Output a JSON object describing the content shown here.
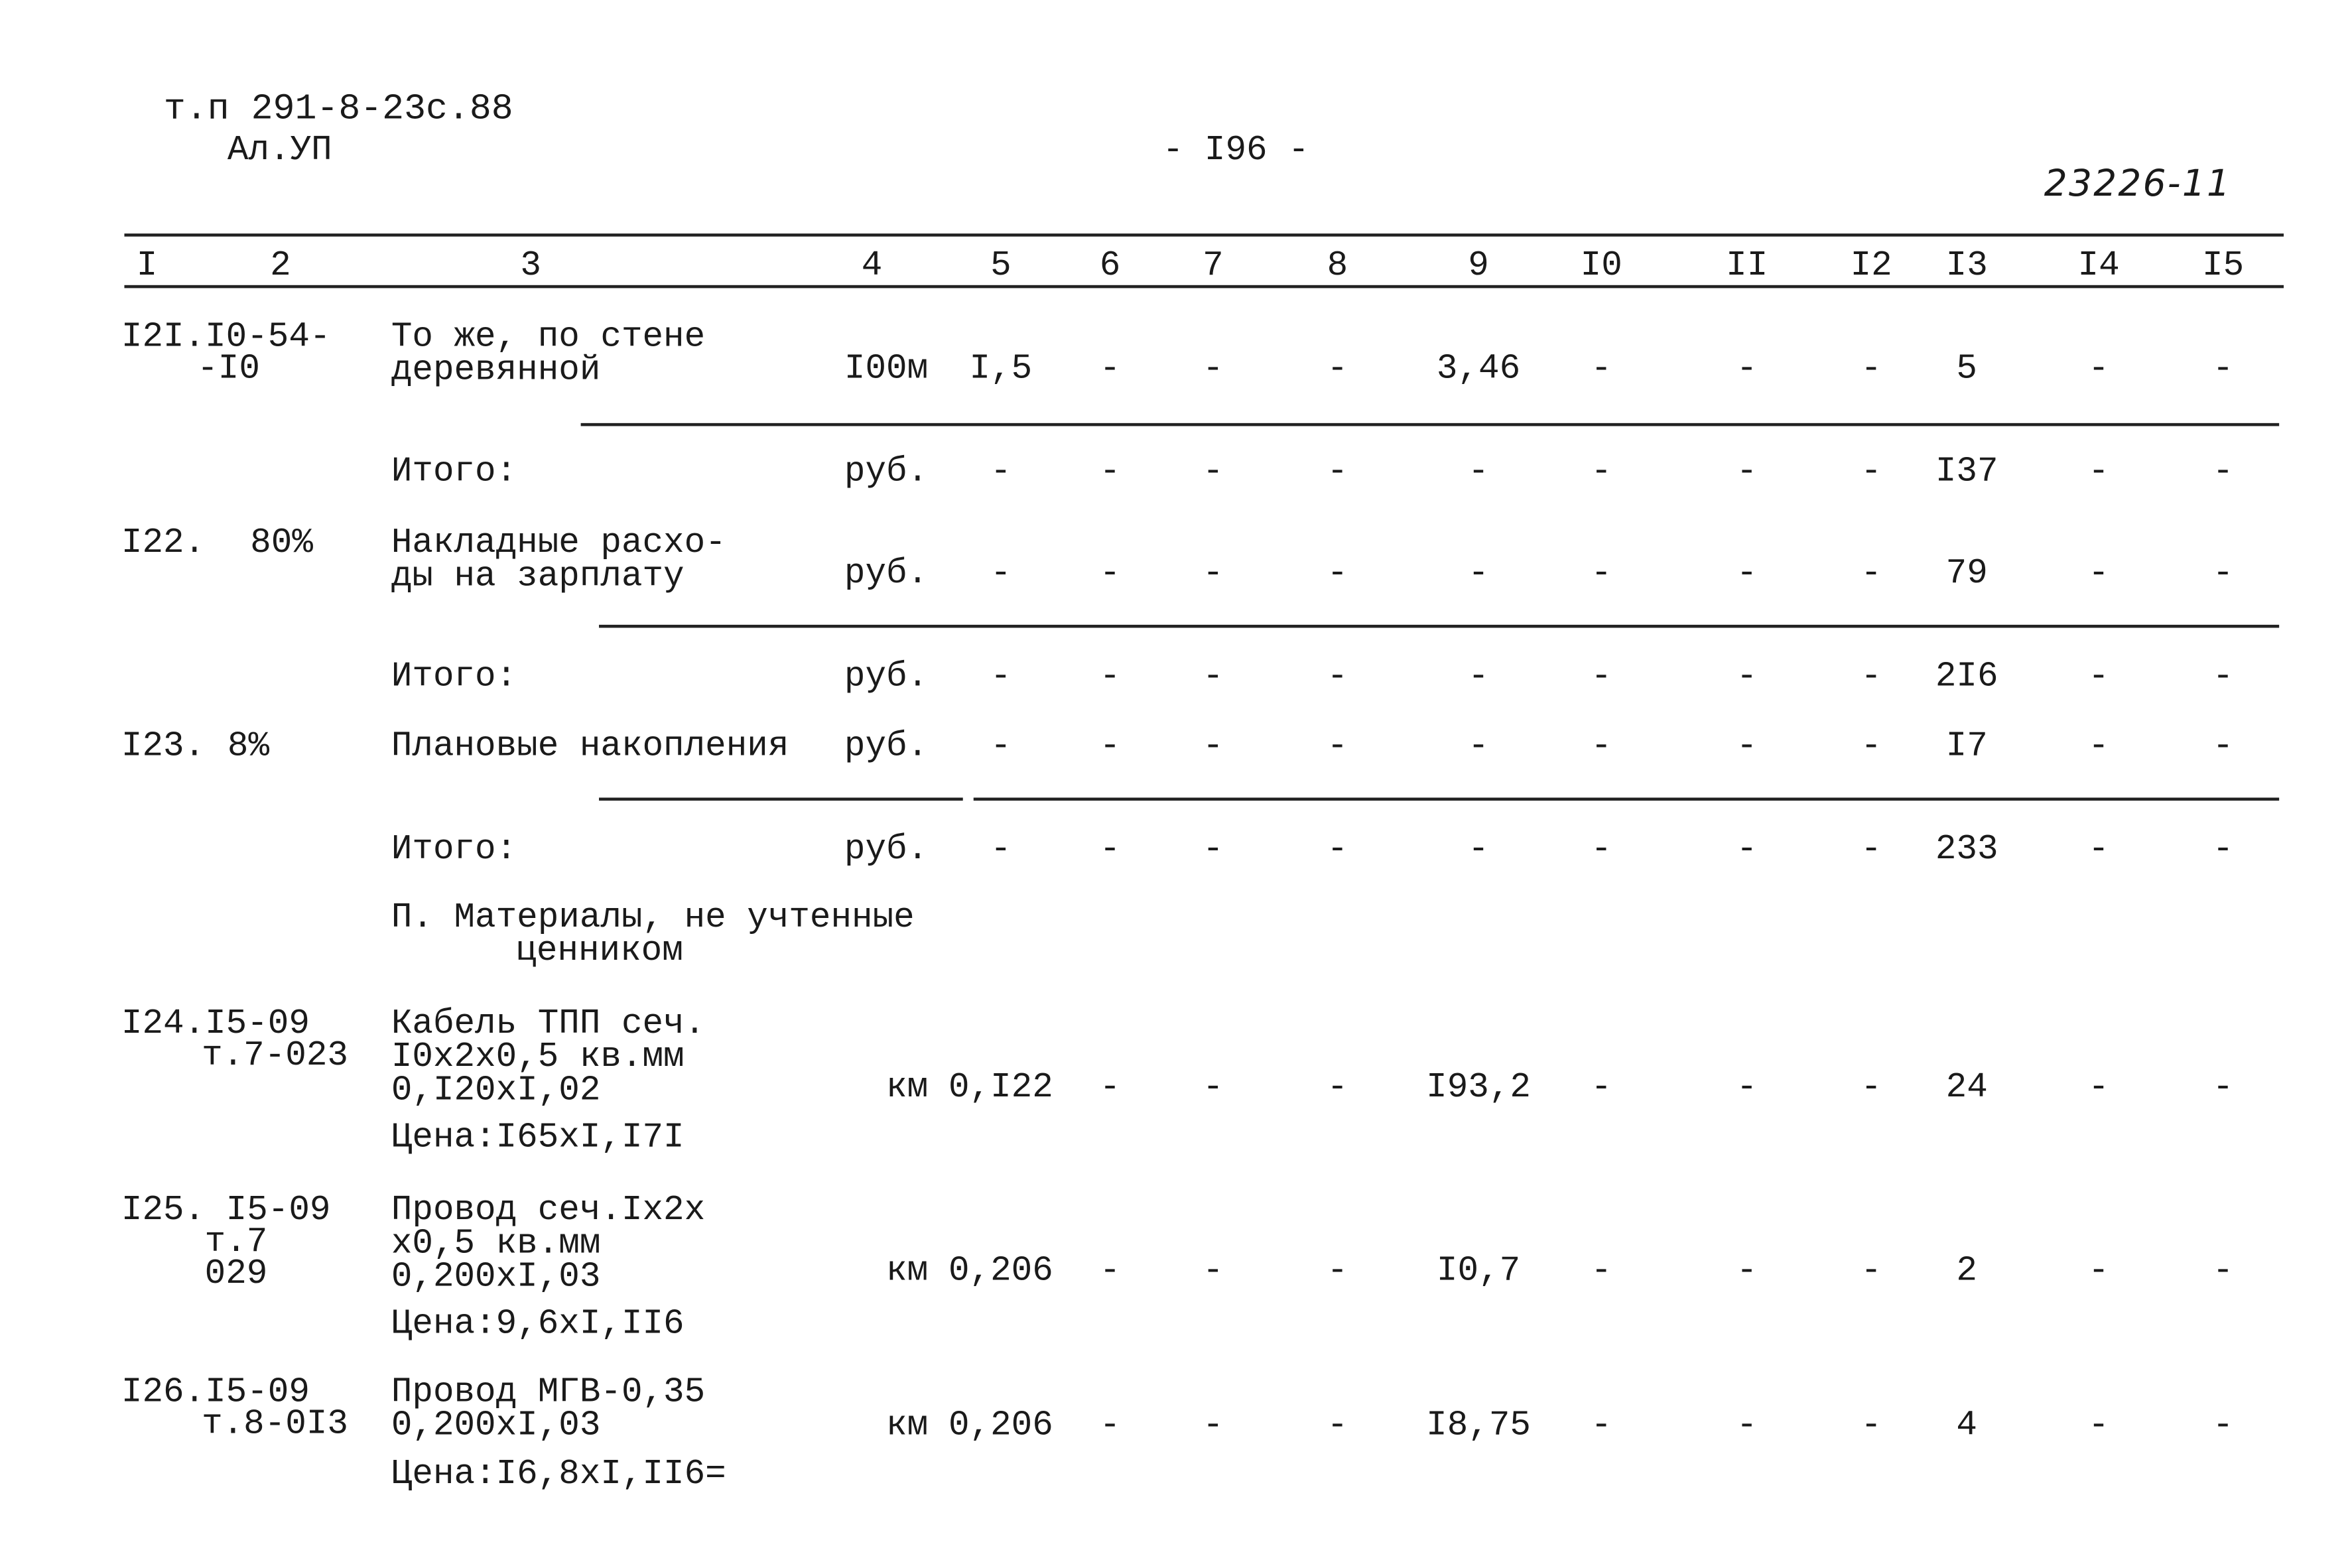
{
  "header": {
    "doc_code": "т.п 291-8-23с.88",
    "album": "Ал.УП",
    "page_number": "- I96 -",
    "stamp": "23226-11"
  },
  "table": {
    "columns": [
      "I",
      "2",
      "3",
      "4",
      "5",
      "6",
      "7",
      "8",
      "9",
      "I0",
      "II",
      "I2",
      "I3",
      "I4",
      "I5"
    ],
    "rows": [
      {
        "code": [
          "I2I.I0-54-",
          "-I0"
        ],
        "name": [
          "То же, по стене",
          "деревянной"
        ],
        "unit": "I00м",
        "cells": [
          "I,5",
          "-",
          "-",
          "-",
          "3,46",
          "-",
          "-",
          "-",
          "5",
          "-",
          "-"
        ]
      },
      {
        "name": [
          "Итого:"
        ],
        "unit": "руб.",
        "cells": [
          "-",
          "-",
          "-",
          "-",
          "-",
          "-",
          "-",
          "-",
          "I37",
          "-",
          "-"
        ]
      },
      {
        "code": [
          "I22."
        ],
        "pct": "80%",
        "name": [
          "Накладные расхо-",
          "ды на зарплату"
        ],
        "unit": "руб.",
        "cells": [
          "-",
          "-",
          "-",
          "-",
          "-",
          "-",
          "-",
          "-",
          "79",
          "-",
          "-"
        ]
      },
      {
        "name": [
          "Итого:"
        ],
        "unit": "руб.",
        "cells": [
          "-",
          "-",
          "-",
          "-",
          "-",
          "-",
          "-",
          "-",
          "2I6",
          "-",
          "-"
        ]
      },
      {
        "code": [
          "I23."
        ],
        "pct": "8%",
        "name": [
          "Плановые накопления"
        ],
        "unit": "руб.",
        "cells": [
          "-",
          "-",
          "-",
          "-",
          "-",
          "-",
          "-",
          "-",
          "I7",
          "-",
          "-"
        ]
      },
      {
        "name": [
          "Итого:"
        ],
        "unit": "руб.",
        "cells": [
          "-",
          "-",
          "-",
          "-",
          "-",
          "-",
          "-",
          "-",
          "233",
          "-",
          "-"
        ]
      },
      {
        "name": [
          "П. Материалы, не учтенные",
          "ценником"
        ]
      },
      {
        "code": [
          "I24.I5-09",
          "т.7-023"
        ],
        "name": [
          "Кабель ТПП сеч.",
          "I0x2x0,5 кв.мм",
          "0,I20xI,02",
          "Цена:I65xI,I7I"
        ],
        "unit": "км",
        "cells": [
          "0,I22",
          "-",
          "-",
          "-",
          "I93,2",
          "-",
          "-",
          "-",
          "24",
          "-",
          "-"
        ]
      },
      {
        "code": [
          "I25. I5-09",
          "т.7",
          "029"
        ],
        "name": [
          "Провод сеч.Ix2x",
          "x0,5 кв.мм",
          "0,200xI,03",
          "Цена:9,6xI,II6"
        ],
        "unit": "км",
        "cells": [
          "0,206",
          "-",
          "-",
          "-",
          "I0,7",
          "-",
          "-",
          "-",
          "2",
          "-",
          "-"
        ]
      },
      {
        "code": [
          "I26.I5-09",
          "т.8-0I3"
        ],
        "name": [
          "Провод МГВ-0,35",
          "0,200xI,03",
          "Цена:I6,8xI,II6="
        ],
        "unit": "км",
        "cells": [
          "0,206",
          "-",
          "-",
          "-",
          "I8,75",
          "-",
          "-",
          "-",
          "4",
          "-",
          "-"
        ]
      }
    ]
  }
}
